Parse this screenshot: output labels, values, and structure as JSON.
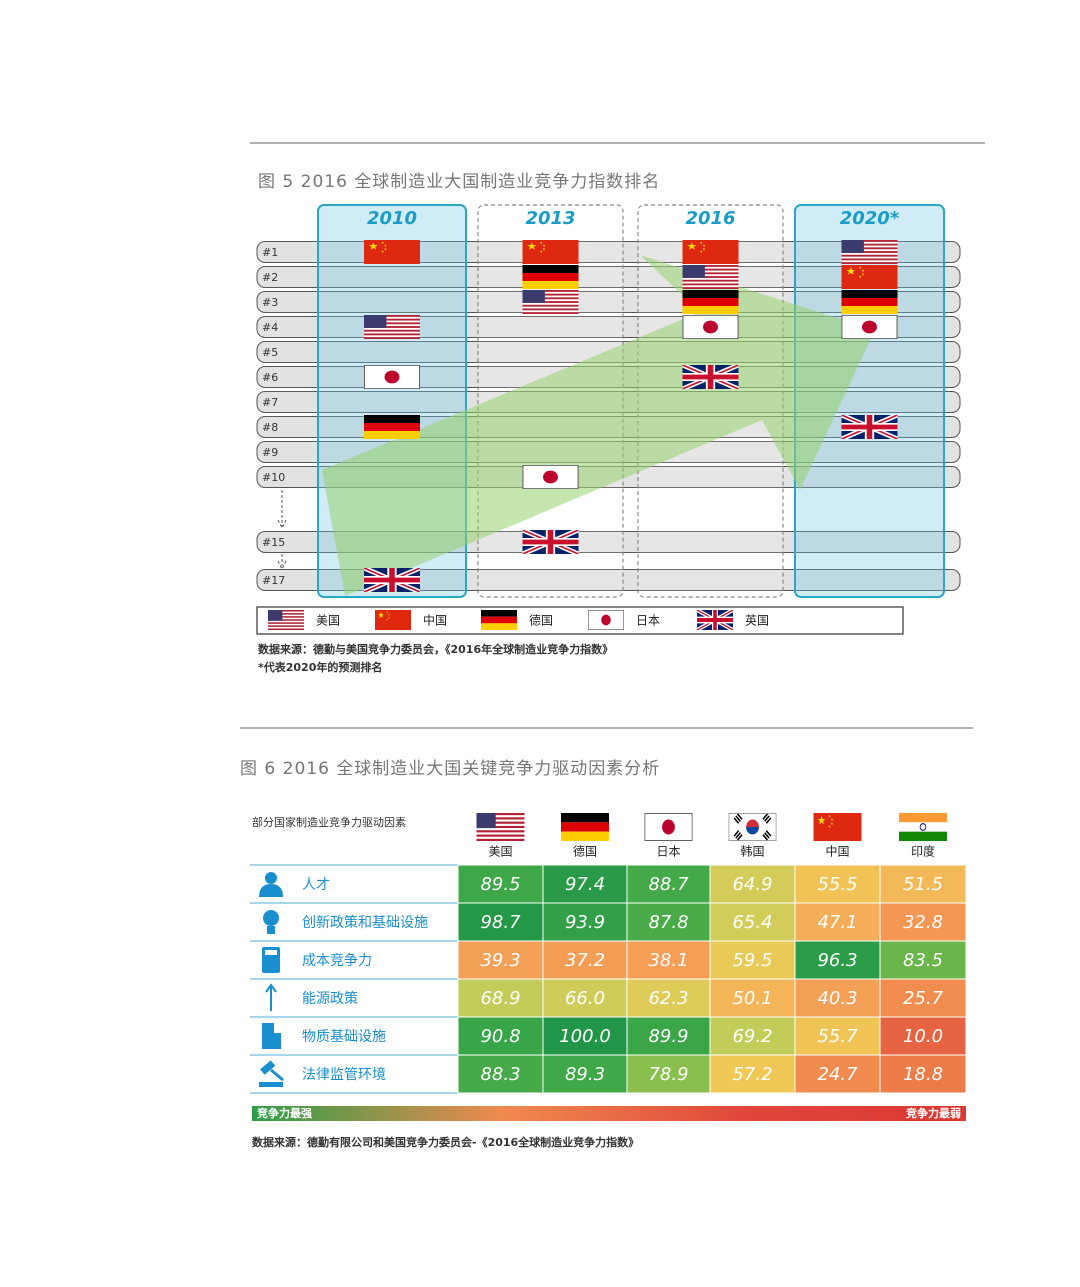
{
  "figure5": {
    "title": "图 5   2016 全球制造业大国制造业竞争力指数排名",
    "rows": [
      "#1",
      "#2",
      "#3",
      "#4",
      "#5",
      "#6",
      "#7",
      "#8",
      "#9",
      "#10",
      "#15",
      "#17"
    ],
    "columns": [
      {
        "year": "2010",
        "ranks": [
          4,
          1,
          8,
          6,
          17
        ]
      },
      {
        "year": "2013",
        "ranks": [
          3,
          1,
          2,
          10,
          15
        ]
      },
      {
        "year": "2016",
        "ranks": [
          2,
          1,
          3,
          4,
          6
        ]
      },
      {
        "year": "2020*",
        "ranks": [
          1,
          2,
          3,
          4,
          8
        ]
      }
    ],
    "legend": [
      "美国",
      "中国",
      "德国",
      "日本",
      "英国"
    ],
    "source": "数据来源：德勤与美国竞争力委员会，《2016年全球制造业竞争力指数》",
    "note": "*代表2020年的预测排名"
  },
  "figure6": {
    "title": "图 6   2016 全球制造业大国关键竞争力驱动因素分析",
    "header": "部分国家制造业竞争力驱动因素",
    "countries": [
      "美国",
      "德国",
      "日本",
      "韩国",
      "中国",
      "印度"
    ],
    "rows": [
      {
        "label": "人才",
        "values": [
          "89.5",
          "97.4",
          "88.7",
          "64.9",
          "55.5",
          "51.5"
        ]
      },
      {
        "label": "创新政策和基础设施",
        "values": [
          "98.7",
          "93.9",
          "87.8",
          "65.4",
          "47.1",
          "32.8"
        ]
      },
      {
        "label": "成本竞争力",
        "values": [
          "39.3",
          "37.2",
          "38.1",
          "59.5",
          "96.3",
          "83.5"
        ]
      },
      {
        "label": "能源政策",
        "values": [
          "68.9",
          "66.0",
          "62.3",
          "50.1",
          "40.3",
          "25.7"
        ]
      },
      {
        "label": "物质基础设施",
        "values": [
          "90.8",
          "100.0",
          "89.9",
          "69.2",
          "55.7",
          "10.0"
        ]
      },
      {
        "label": "法律监管环境",
        "values": [
          "88.3",
          "89.3",
          "78.9",
          "57.2",
          "24.7",
          "18.8"
        ]
      }
    ],
    "scale": {
      "left": "竞争力最强",
      "right": "竞争力最弱"
    },
    "source": "数据来源：德勤有限公司和美国竞争力委员会-《2016全球制造业竞争力指数》"
  }
}
